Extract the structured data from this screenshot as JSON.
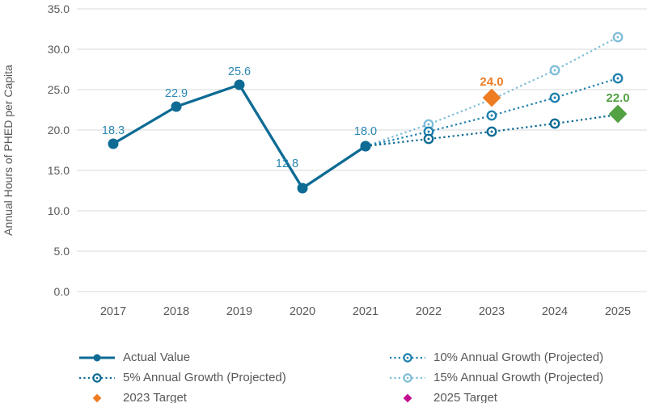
{
  "colors": {
    "dark_blue": "#0d6b94",
    "medium_blue": "#1f81ae",
    "light_blue": "#7fbdd9",
    "orange": "#ee7c23",
    "green": "#52a142",
    "magenta": "#c40e92",
    "axis_text": "#58595b",
    "gridline": "#d9d9d9",
    "data_label": "#2b87b4"
  },
  "chart_data": {
    "type": "line",
    "title": "",
    "xlabel": "",
    "ylabel": "Annual Hours of PHED per Capita",
    "ylim": [
      0,
      35
    ],
    "ytick_step": 5,
    "grid": "horizontal",
    "legend_position": "bottom",
    "categories": [
      2017,
      2018,
      2019,
      2020,
      2021,
      2022,
      2023,
      2024,
      2025
    ],
    "series": [
      {
        "id": "actual",
        "name": "Actual Value",
        "style": "solid",
        "color_key": "dark_blue",
        "x": [
          2017,
          2018,
          2019,
          2020,
          2021
        ],
        "values": [
          18.3,
          22.9,
          25.6,
          12.8,
          18.0
        ],
        "labels": [
          "18.3",
          "22.9",
          "25.6",
          "12.8",
          "18.0"
        ],
        "label_offsets": [
          [
            0,
            0
          ],
          [
            0,
            0
          ],
          [
            0,
            0
          ],
          [
            -19,
            -14
          ],
          [
            0,
            -2
          ]
        ]
      },
      {
        "id": "growth5",
        "name": "5% Annual Growth (Projected)",
        "style": "dotted",
        "color_key": "dark_blue",
        "x": [
          2021,
          2022,
          2023,
          2024,
          2025
        ],
        "values": [
          18.0,
          18.9,
          19.8,
          20.8,
          21.9
        ]
      },
      {
        "id": "growth10",
        "name": "10% Annual Growth (Projected)",
        "style": "dotted",
        "color_key": "medium_blue",
        "x": [
          2021,
          2022,
          2023,
          2024,
          2025
        ],
        "values": [
          18.0,
          19.8,
          21.8,
          24.0,
          26.4
        ]
      },
      {
        "id": "growth15",
        "name": "15% Annual Growth (Projected)",
        "style": "dotted",
        "color_key": "light_blue",
        "x": [
          2021,
          2022,
          2023,
          2024,
          2025
        ],
        "values": [
          18.0,
          20.7,
          23.8,
          27.4,
          31.5
        ]
      }
    ],
    "targets": [
      {
        "id": "target2023",
        "name": "2023 Target",
        "x": 2023,
        "value": 24.0,
        "label": "24.0",
        "color_key": "orange"
      },
      {
        "id": "target2025",
        "name": "2025 Target",
        "x": 2025,
        "value": 22.0,
        "label": "22.0",
        "color_key": "green"
      }
    ]
  },
  "legend": {
    "columns": [
      {
        "items": [
          {
            "id": "actual",
            "label": "Actual Value",
            "swatch": "solid-line",
            "color_key": "dark_blue"
          },
          {
            "id": "growth5",
            "label": "5% Annual Growth (Projected)",
            "swatch": "dotted-line",
            "color_key": "dark_blue"
          },
          {
            "id": "target-2023",
            "label": "2023 Target",
            "swatch": "diamond",
            "color_key": "orange"
          }
        ]
      },
      {
        "items": [
          {
            "id": "growth10",
            "label": "10% Annual Growth (Projected)",
            "swatch": "dotted-line",
            "color_key": "medium_blue"
          },
          {
            "id": "growth15",
            "label": "15% Annual Growth (Projected)",
            "swatch": "dotted-line",
            "color_key": "light_blue"
          },
          {
            "id": "target-2025",
            "label": "2025 Target",
            "swatch": "diamond",
            "color_key": "magenta"
          }
        ]
      }
    ]
  }
}
